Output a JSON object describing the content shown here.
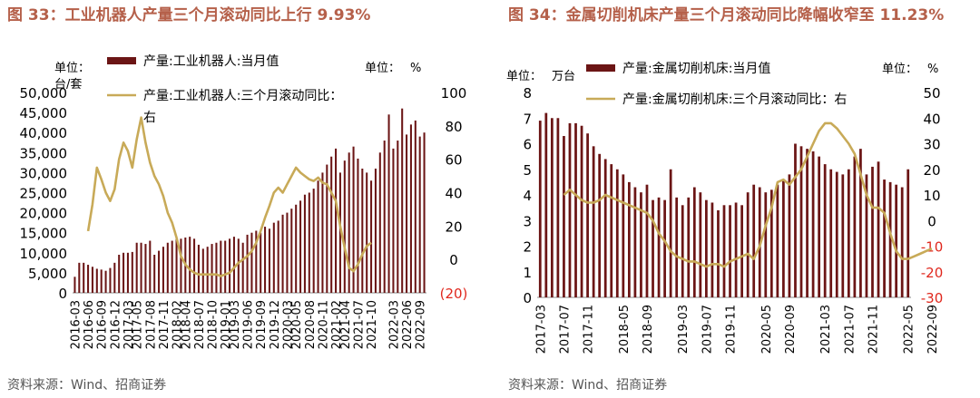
{
  "source_note": "资料来源：Wind、招商证券",
  "colors": {
    "bar": "#6b1515",
    "line": "#c8aa58",
    "title": "#b5604a",
    "negative_tick": "#e0281e"
  },
  "chart_data": [
    {
      "type": "bar+line",
      "title": "图 33：工业机器人产量三个月滚动同比上行 9.93%",
      "left_unit": "单位：台/套",
      "right_unit": "单位：%",
      "y_left": {
        "min": 0,
        "max": 50000,
        "ticks": [
          "0",
          "5,000",
          "10,000",
          "15,000",
          "20,000",
          "25,000",
          "30,000",
          "35,000",
          "40,000",
          "45,000",
          "50,000"
        ]
      },
      "y_right": {
        "min": -20,
        "max": 100,
        "ticks": [
          "(20)",
          "0",
          "20",
          "40",
          "60",
          "80",
          "100"
        ]
      },
      "x_tick_labels": [
        "2016-03",
        "2016-06",
        "2016-09",
        "2016-12",
        "2017-03",
        "2017-05",
        "2017-08",
        "2017-11",
        "2018-02",
        "2018-04",
        "2018-07",
        "2018-10",
        "2019-01",
        "2019-03",
        "2019-06",
        "2019-09",
        "2019-12",
        "2020-03",
        "2020-05",
        "2020-08",
        "2020-11",
        "2021-02",
        "2021-04",
        "2021-07",
        "2021-10",
        "2022-03",
        "2022-06",
        "2022-09"
      ],
      "series": [
        {
          "name": "产量:工业机器人:当月值",
          "kind": "bar",
          "axis": "left",
          "start": "2016-03",
          "values": [
            4000,
            7500,
            7500,
            7000,
            6500,
            6000,
            5800,
            5500,
            6200,
            7500,
            9500,
            10000,
            10000,
            10200,
            12500,
            12500,
            12200,
            13000,
            9500,
            10500,
            11500,
            12500,
            13000,
            13500,
            13500,
            13800,
            14000,
            13500,
            12000,
            11000,
            11500,
            12200,
            12500,
            13000,
            13000,
            13500,
            14000,
            13500,
            12500,
            14500,
            15000,
            15500,
            15000,
            16500,
            16000,
            17500,
            18000,
            19500,
            20000,
            21000,
            22000,
            23000,
            24500,
            25000,
            26000,
            28000,
            30000,
            32000,
            34000,
            36000,
            30000,
            33000,
            35000,
            36500,
            33500,
            31000,
            30000,
            28000,
            31000,
            35000,
            38000,
            44500,
            36000,
            38000,
            46000,
            39500,
            42000,
            43000,
            39000,
            40000
          ]
        },
        {
          "name": "产量:工业机器人:三个月滚动同比：右",
          "kind": "line",
          "axis": "right",
          "start": "2016-06",
          "values": [
            17,
            33,
            55,
            48,
            40,
            35,
            42,
            60,
            70,
            65,
            55,
            72,
            85,
            70,
            58,
            50,
            45,
            38,
            28,
            22,
            13,
            2,
            -3,
            -6,
            -8,
            -9,
            -9,
            -9,
            -9,
            -9,
            -10,
            -9,
            -8,
            -5,
            -2,
            0,
            2,
            5,
            10,
            17,
            25,
            32,
            40,
            43,
            40,
            45,
            50,
            55,
            52,
            50,
            48,
            47,
            49,
            46,
            45,
            40,
            35,
            20,
            7,
            -5,
            -7,
            -3,
            3,
            8,
            10
          ]
        }
      ]
    },
    {
      "type": "bar+line",
      "title": "图 34：金属切削机床产量三个月滚动同比降幅收窄至 11.23%",
      "left_unit": "单位：万台",
      "right_unit": "单位：%",
      "y_left": {
        "min": 0,
        "max": 8,
        "ticks": [
          "0",
          "1",
          "2",
          "3",
          "4",
          "5",
          "6",
          "7",
          "8"
        ]
      },
      "y_right": {
        "min": -30,
        "max": 50,
        "ticks": [
          "-30",
          "-20",
          "-10",
          "0",
          "10",
          "20",
          "30",
          "40",
          "50"
        ]
      },
      "x_tick_labels": [
        "2017-03",
        "2017-07",
        "2017-11",
        "2018-05",
        "2018-09",
        "2019-03",
        "2019-07",
        "2019-11",
        "2020-05",
        "2020-09",
        "2021-03",
        "2021-07",
        "2021-11",
        "2022-05",
        "2022-09"
      ],
      "series": [
        {
          "name": "产量:金属切削机床:当月值",
          "kind": "bar",
          "axis": "left",
          "start": "2017-03",
          "values": [
            6.9,
            7.2,
            7.0,
            7.0,
            6.3,
            6.8,
            6.8,
            6.7,
            6.4,
            5.9,
            5.6,
            5.4,
            5.2,
            5.0,
            4.8,
            4.5,
            4.3,
            4.1,
            4.4,
            3.8,
            3.9,
            3.8,
            5.0,
            3.9,
            3.6,
            3.9,
            4.3,
            4.1,
            3.8,
            3.7,
            3.4,
            3.6,
            3.6,
            3.7,
            3.6,
            4.1,
            4.4,
            4.3,
            4.1,
            4.2,
            4.4,
            4.6,
            4.8,
            6.0,
            5.9,
            5.8,
            5.7,
            5.5,
            5.2,
            5.0,
            4.9,
            4.8,
            5.0,
            5.5,
            5.8,
            4.8,
            5.1,
            5.3,
            4.6,
            4.5,
            4.4,
            4.3,
            5.0
          ]
        },
        {
          "name": "产量:金属切削机床:三个月滚动同比：右",
          "kind": "line",
          "axis": "right",
          "start": "2017-07",
          "values": [
            10,
            12,
            10,
            8,
            7,
            7,
            8,
            10,
            9,
            8,
            7,
            6,
            5,
            4,
            3,
            0,
            -5,
            -8,
            -12,
            -14,
            -15,
            -16,
            -16,
            -17,
            -18,
            -17,
            -17,
            -18,
            -16,
            -15,
            -14,
            -13,
            -15,
            -10,
            -2,
            5,
            15,
            16,
            14,
            17,
            20,
            25,
            30,
            35,
            38,
            38,
            36,
            33,
            30,
            26,
            18,
            10,
            5,
            5,
            3,
            -5,
            -12,
            -15,
            -15,
            -14,
            -13,
            -12,
            -11
          ]
        }
      ]
    }
  ]
}
